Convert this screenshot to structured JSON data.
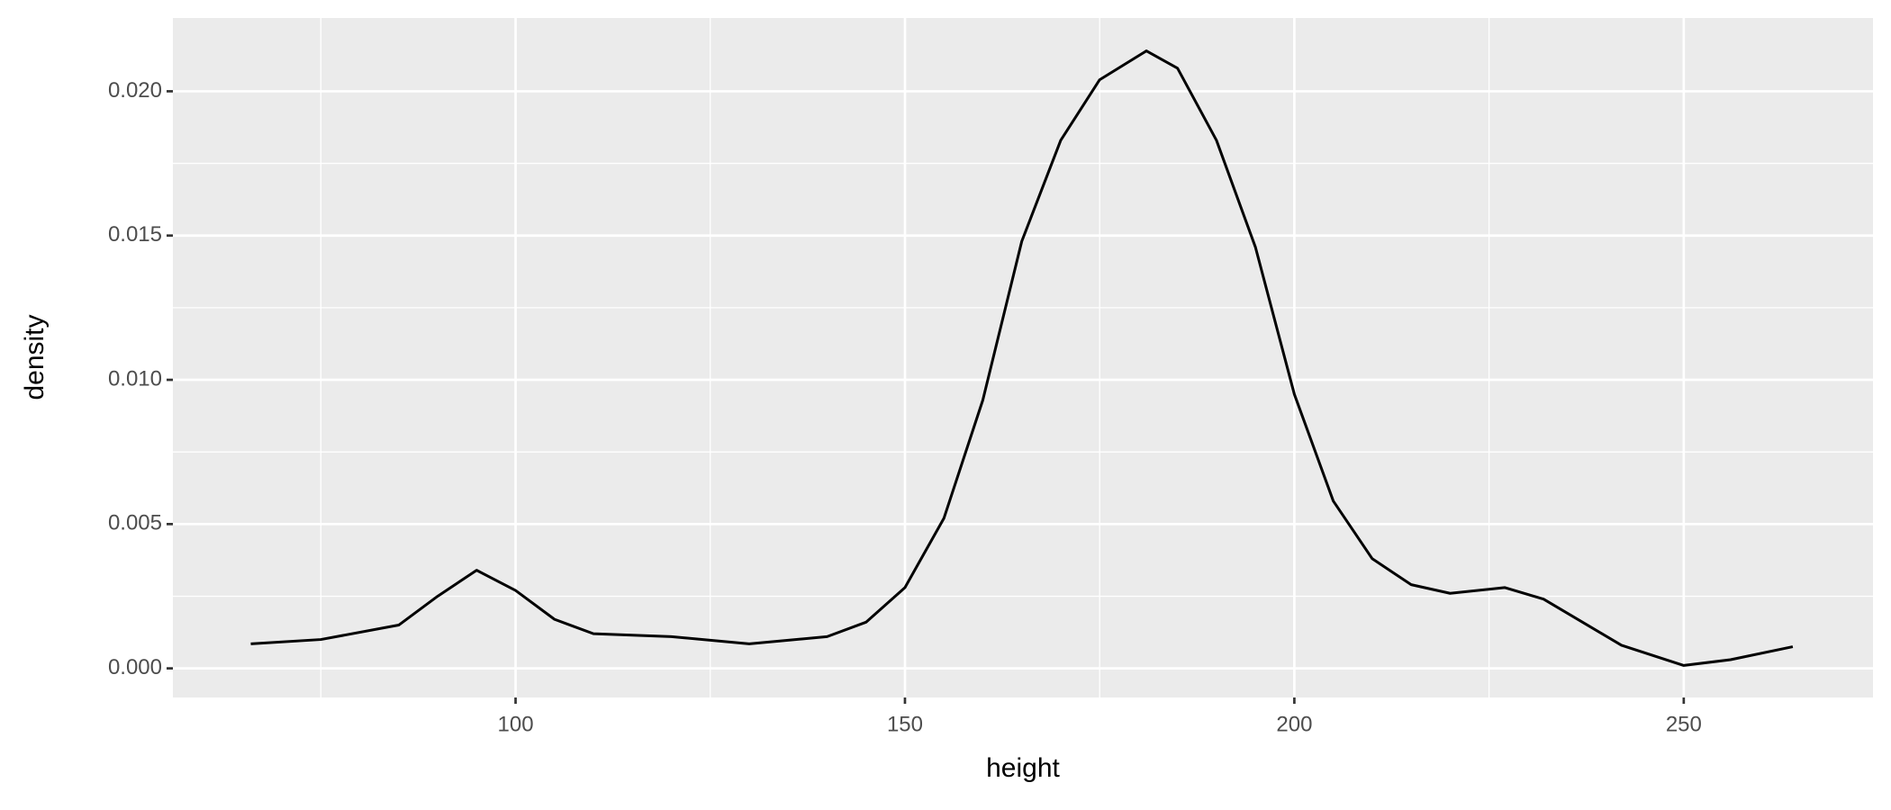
{
  "chart_data": {
    "type": "line",
    "xlabel": "height",
    "ylabel": "density",
    "x": [
      66,
      75,
      85,
      90,
      95,
      100,
      105,
      110,
      120,
      130,
      140,
      145,
      150,
      155,
      160,
      165,
      170,
      175,
      181,
      185,
      190,
      195,
      200,
      205,
      210,
      215,
      220,
      227,
      232,
      237,
      242,
      250,
      256,
      264
    ],
    "series": [
      {
        "color": "#000000",
        "values": [
          0.00085,
          0.001,
          0.0015,
          0.0025,
          0.0034,
          0.0027,
          0.0017,
          0.0012,
          0.0011,
          0.00085,
          0.0011,
          0.0016,
          0.0028,
          0.0052,
          0.0093,
          0.0148,
          0.0183,
          0.0204,
          0.0214,
          0.0208,
          0.0183,
          0.0146,
          0.0095,
          0.0058,
          0.0038,
          0.0029,
          0.0026,
          0.0028,
          0.0024,
          0.0016,
          0.0008,
          0.0001,
          0.0003,
          0.00075
        ]
      }
    ],
    "xlim": [
      56,
      274.3
    ],
    "xticks": [
      100,
      150,
      200,
      250
    ],
    "x_minor_ticks": [
      75,
      125,
      175,
      225
    ],
    "ylim": [
      -0.00101,
      0.02254
    ],
    "yticks": [
      {
        "value": 0,
        "label": "0.000"
      },
      0.005,
      {
        "value": 0.01,
        "label": "0.010"
      },
      0.015,
      {
        "value": 0.02,
        "label": "0.020"
      }
    ],
    "y_minor_ticks": [
      0.0025,
      0.0075,
      0.0125,
      0.0175
    ],
    "grid": true,
    "panel_color": "#ebebeb"
  }
}
